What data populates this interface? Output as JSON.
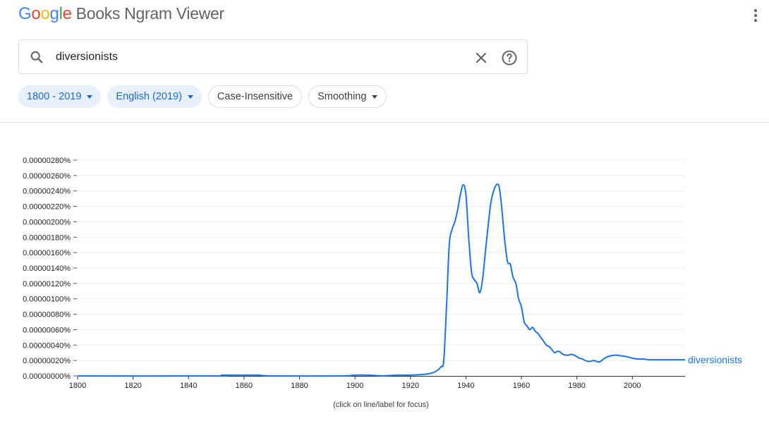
{
  "header": {
    "logo_letters": [
      {
        "ch": "G",
        "color": "#4285F4"
      },
      {
        "ch": "o",
        "color": "#EA4335"
      },
      {
        "ch": "o",
        "color": "#FBBC05"
      },
      {
        "ch": "g",
        "color": "#4285F4"
      },
      {
        "ch": "l",
        "color": "#34A853"
      },
      {
        "ch": "e",
        "color": "#EA4335"
      }
    ],
    "product_name": "Books Ngram Viewer",
    "menu_icon": "more-vert-icon"
  },
  "search": {
    "value": "diversionists",
    "icons": {
      "search": "search-icon",
      "clear": "close-icon",
      "help": "help-icon"
    }
  },
  "filters": {
    "year_range": "1800 - 2019",
    "corpus": "English (2019)",
    "case": "Case-Insensitive",
    "smoothing": "Smoothing"
  },
  "colors": {
    "accent": "#1967d2",
    "series": "#1a73e8",
    "chip_bg": "#e8f0fe",
    "grid": "#eeeeee"
  },
  "chart_data": {
    "type": "line",
    "xlabel": "",
    "ylabel": "",
    "xlim": [
      1800,
      2019
    ],
    "ylim": [
      0,
      2.8e-06
    ],
    "x_ticks": [
      "1800",
      "1820",
      "1840",
      "1860",
      "1880",
      "1900",
      "1920",
      "1940",
      "1960",
      "1980",
      "2000"
    ],
    "y_ticks": [
      "0.00000000%",
      "0.00000020%",
      "0.00000040%",
      "0.00000060%",
      "0.00000080%",
      "0.00000100%",
      "0.00000120%",
      "0.00000140%",
      "0.00000160%",
      "0.00000180%",
      "0.00000200%",
      "0.00000220%",
      "0.00000240%",
      "0.00000260%",
      "0.00000280%"
    ],
    "grid": true,
    "legend": "inline-right",
    "series": [
      {
        "name": "diversionists",
        "x": [
          1800,
          1850,
          1852,
          1858,
          1865,
          1870,
          1895,
          1900,
          1905,
          1910,
          1915,
          1920,
          1925,
          1928,
          1930,
          1931,
          1932,
          1933,
          1934,
          1935,
          1936,
          1937,
          1938,
          1939,
          1940,
          1941,
          1942,
          1943,
          1944,
          1945,
          1946,
          1947,
          1948,
          1949,
          1950,
          1951,
          1952,
          1953,
          1954,
          1955,
          1956,
          1957,
          1958,
          1959,
          1960,
          1961,
          1962,
          1963,
          1964,
          1965,
          1966,
          1967,
          1968,
          1969,
          1970,
          1971,
          1972,
          1973,
          1974,
          1975,
          1976,
          1977,
          1978,
          1979,
          1980,
          1981,
          1982,
          1983,
          1984,
          1985,
          1986,
          1987,
          1988,
          1989,
          1990,
          1992,
          1994,
          1996,
          1998,
          2000,
          2002,
          2004,
          2006,
          2008,
          2009,
          2010,
          2011,
          2012,
          2013,
          2014,
          2016,
          2018,
          2019
        ],
        "values": [
          0.0,
          0.0,
          1e-08,
          1e-08,
          1e-08,
          0.0,
          0.0,
          1e-08,
          1e-08,
          0.0,
          1e-08,
          1e-08,
          2e-08,
          4e-08,
          8e-08,
          1.2e-07,
          2e-07,
          9e-07,
          1.7e-06,
          1.9e-06,
          2e-06,
          2.15e-06,
          2.35e-06,
          2.48e-06,
          2.35e-06,
          1.8e-06,
          1.35e-06,
          1.25e-06,
          1.2e-06,
          1.08e-06,
          1.25e-06,
          1.6e-06,
          1.95e-06,
          2.25e-06,
          2.4e-06,
          2.48e-06,
          2.45e-06,
          2.15e-06,
          1.75e-06,
          1.48e-06,
          1.45e-06,
          1.28e-06,
          1.2e-06,
          1e-06,
          9e-07,
          7e-07,
          6.5e-07,
          6e-07,
          6.3e-07,
          5.8e-07,
          5.5e-07,
          5e-07,
          4.5e-07,
          4e-07,
          3.8e-07,
          3.4e-07,
          3e-07,
          3.2e-07,
          3.1e-07,
          2.8e-07,
          2.7e-07,
          2.7e-07,
          2.8e-07,
          2.7e-07,
          2.5e-07,
          2.3e-07,
          2.2e-07,
          2e-07,
          1.9e-07,
          1.9e-07,
          2e-07,
          1.9e-07,
          1.8e-07,
          2e-07,
          2.3e-07,
          2.6e-07,
          2.7e-07,
          2.6e-07,
          2.5e-07,
          2.3e-07,
          2.2e-07,
          2.2e-07,
          2.1e-07,
          2.1e-07,
          2.1e-07,
          2.1e-07,
          2.1e-07,
          2.1e-07,
          2.1e-07,
          2.1e-07,
          2.1e-07,
          2.1e-07,
          2.1e-07
        ]
      }
    ],
    "footnote": "(click on line/label for focus)"
  }
}
